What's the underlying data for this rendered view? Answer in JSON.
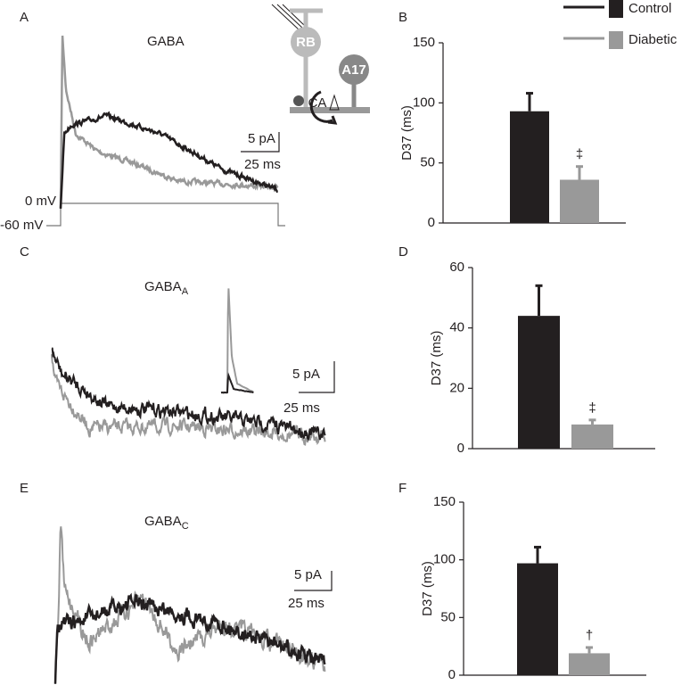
{
  "legend": [
    {
      "name": "Control",
      "color": "#231f20"
    },
    {
      "name": "Diabetic",
      "color": "#999999"
    }
  ],
  "traces": [
    {
      "label": "A",
      "title": "GABA",
      "scale_y": "5 pA",
      "scale_x": "25 ms"
    },
    {
      "label": "C",
      "title": "GABA",
      "title_sub": "A",
      "scale_y": "5 pA",
      "scale_x": "25 ms"
    },
    {
      "label": "E",
      "title": "GABA",
      "title_sub": "C",
      "scale_y": "5 pA",
      "scale_x": "25 ms"
    }
  ],
  "voltage_labels": [
    "0 mV",
    "-60 mV"
  ],
  "diagram": {
    "labels": [
      "RB",
      "A17",
      "CA"
    ]
  },
  "chart_data": [
    {
      "type": "bar",
      "label": "B",
      "y_label": "D37 (ms)",
      "values": [
        93,
        36
      ],
      "errors": [
        15,
        11
      ],
      "annotation": "‡",
      "ylim": [
        0,
        150
      ],
      "yticks": [
        0,
        50,
        100,
        150
      ]
    },
    {
      "type": "bar",
      "label": "D",
      "y_label": "D37 (ms)",
      "values": [
        44,
        8
      ],
      "errors": [
        10,
        1.5
      ],
      "annotation": "‡",
      "ylim": [
        0,
        60
      ],
      "yticks": [
        0,
        20,
        40,
        60
      ]
    },
    {
      "type": "bar",
      "label": "F",
      "y_label": "D37 (ms)",
      "values": [
        97,
        19
      ],
      "errors": [
        14,
        5
      ],
      "annotation": "†",
      "ylim": [
        0,
        150
      ],
      "yticks": [
        0,
        50,
        100,
        150
      ]
    }
  ]
}
